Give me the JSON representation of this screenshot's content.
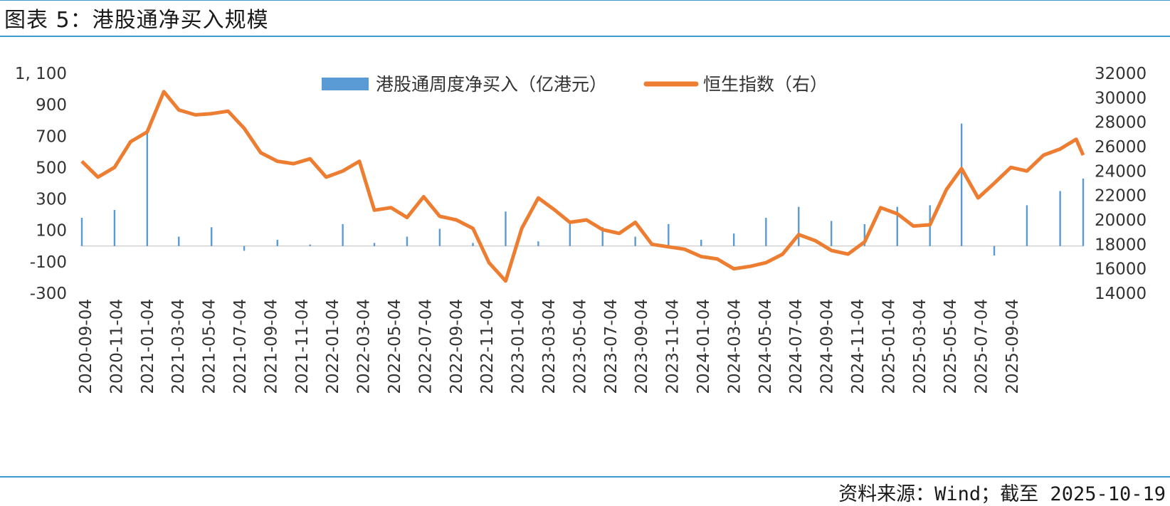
{
  "header": {
    "title": "图表 5：港股通净买入规模"
  },
  "footer": {
    "source": "资料来源：Wind；截至 2025-10-19"
  },
  "colors": {
    "bar": "#5b9bd5",
    "line": "#ed7d31",
    "rule": "#3d9bd0"
  },
  "chart_data": {
    "type": "bar+line",
    "legend_position": "top-center",
    "grid": false,
    "x_tick_labels": [
      "2020-09-04",
      "2020-11-04",
      "2021-01-04",
      "2021-03-04",
      "2021-05-04",
      "2021-07-04",
      "2021-09-04",
      "2021-11-04",
      "2022-01-04",
      "2022-03-04",
      "2022-05-04",
      "2022-07-04",
      "2022-09-04",
      "2022-11-04",
      "2023-01-04",
      "2023-03-04",
      "2023-05-04",
      "2023-07-04",
      "2023-09-04",
      "2023-11-04",
      "2024-01-04",
      "2024-03-04",
      "2024-05-04",
      "2024-07-04",
      "2024-09-04",
      "2024-11-04",
      "2025-01-04",
      "2025-03-04",
      "2025-05-04",
      "2025-07-04",
      "2025-09-04"
    ],
    "y_left": {
      "ticks": [
        "1, 100",
        "900",
        "700",
        "500",
        "300",
        "100",
        "-100",
        "-300"
      ],
      "range": [
        -300,
        1100
      ]
    },
    "y_right": {
      "ticks": [
        "32000",
        "30000",
        "28000",
        "26000",
        "24000",
        "22000",
        "20000",
        "18000",
        "16000",
        "14000"
      ],
      "range": [
        14000,
        32000
      ]
    },
    "series": [
      {
        "name": "港股通周度净买入（亿港元）",
        "type": "bar",
        "axis": "left",
        "x": [
          "2020-09-04",
          "2020-11-04",
          "2021-01-04",
          "2021-03-04",
          "2021-05-04",
          "2021-07-04",
          "2021-09-04",
          "2021-11-04",
          "2022-01-04",
          "2022-03-04",
          "2022-05-04",
          "2022-07-04",
          "2022-09-04",
          "2022-11-04",
          "2023-01-04",
          "2023-03-04",
          "2023-05-04",
          "2023-07-04",
          "2023-09-04",
          "2023-11-04",
          "2024-01-04",
          "2024-03-04",
          "2024-05-04",
          "2024-07-04",
          "2024-09-04",
          "2024-11-04",
          "2025-01-04",
          "2025-03-04",
          "2025-05-04",
          "2025-07-04",
          "2025-09-04",
          "2025-10-17"
        ],
        "values": [
          180,
          230,
          720,
          60,
          120,
          -30,
          40,
          10,
          140,
          20,
          60,
          110,
          20,
          220,
          30,
          150,
          120,
          60,
          140,
          40,
          80,
          180,
          250,
          160,
          140,
          250,
          260,
          780,
          -60,
          260,
          350,
          430
        ]
      },
      {
        "name": "恒生指数（右）",
        "type": "line",
        "axis": "right",
        "x": [
          "2020-09-04",
          "2020-10-04",
          "2020-11-04",
          "2020-12-04",
          "2021-01-04",
          "2021-02-04",
          "2021-03-04",
          "2021-04-04",
          "2021-05-04",
          "2021-06-04",
          "2021-07-04",
          "2021-08-04",
          "2021-09-04",
          "2021-10-04",
          "2021-11-04",
          "2021-12-04",
          "2022-01-04",
          "2022-02-04",
          "2022-03-04",
          "2022-04-04",
          "2022-05-04",
          "2022-06-04",
          "2022-07-04",
          "2022-08-04",
          "2022-09-04",
          "2022-10-04",
          "2022-11-04",
          "2022-12-04",
          "2023-01-04",
          "2023-02-04",
          "2023-03-04",
          "2023-04-04",
          "2023-05-04",
          "2023-06-04",
          "2023-07-04",
          "2023-08-04",
          "2023-09-04",
          "2023-10-04",
          "2023-11-04",
          "2023-12-04",
          "2024-01-04",
          "2024-02-04",
          "2024-03-04",
          "2024-04-04",
          "2024-05-04",
          "2024-06-04",
          "2024-07-04",
          "2024-08-04",
          "2024-09-04",
          "2024-10-04",
          "2024-11-04",
          "2024-12-04",
          "2025-01-04",
          "2025-02-04",
          "2025-03-04",
          "2025-04-04",
          "2025-05-04",
          "2025-06-04",
          "2025-07-04",
          "2025-08-04",
          "2025-09-04",
          "2025-10-04",
          "2025-10-17"
        ],
        "values": [
          24800,
          23500,
          24300,
          26400,
          27200,
          30500,
          29000,
          28600,
          28700,
          28900,
          27500,
          25500,
          24800,
          24600,
          25000,
          23500,
          24000,
          24800,
          20800,
          21000,
          20200,
          21900,
          20300,
          20000,
          19300,
          16500,
          15000,
          19300,
          21800,
          20800,
          19800,
          20000,
          19200,
          18900,
          19800,
          18000,
          17800,
          17600,
          17000,
          16800,
          16000,
          16200,
          16500,
          17200,
          18800,
          18300,
          17500,
          17200,
          18200,
          21000,
          20500,
          19500,
          19600,
          22500,
          24200,
          21800,
          23000,
          24300,
          24000,
          25300,
          25800,
          26600,
          25300
        ]
      }
    ]
  }
}
